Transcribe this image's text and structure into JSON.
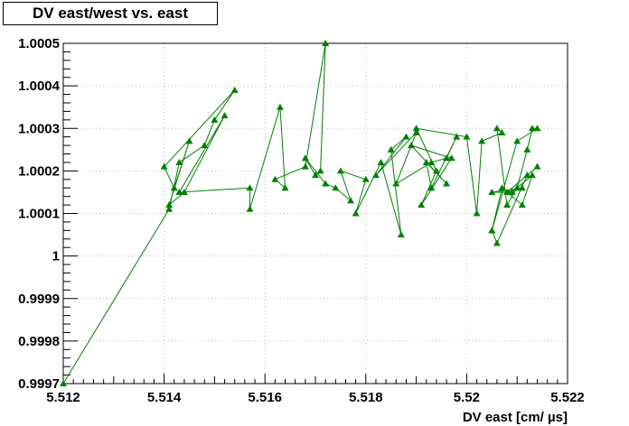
{
  "chart_data": {
    "type": "line",
    "title": "DV east/west vs. east",
    "xlabel": "DV east [cm/ µs]",
    "ylabel": "",
    "xlim": [
      5.512,
      5.522
    ],
    "ylim": [
      0.9997,
      1.0005
    ],
    "x_ticks": [
      "5.512",
      "5.514",
      "5.516",
      "5.518",
      "5.52",
      "5.522"
    ],
    "y_ticks": [
      "0.9997",
      "0.9998",
      "0.9999",
      "1",
      "1.0001",
      "1.0002",
      "1.0003",
      "1.0004",
      "1.0005"
    ],
    "grid": true,
    "marker": "triangle",
    "color": "#008000",
    "series": [
      {
        "x": [
          5.512,
          5.5141,
          5.5143,
          5.5148,
          5.515,
          5.5154,
          5.514,
          5.5142,
          5.5145,
          5.5141,
          5.5144,
          5.5152,
          5.5143,
          5.5157,
          5.5157,
          5.5163,
          5.5164,
          5.5162,
          5.5168,
          5.5172,
          5.5171,
          5.517,
          5.5168,
          5.5172,
          5.5174,
          5.5177,
          5.5175,
          5.518,
          5.5178,
          5.5183,
          5.5187,
          5.5185,
          5.5188,
          5.5182,
          5.519,
          5.5186,
          5.5193,
          5.5196,
          5.5198,
          5.5193,
          5.5192,
          5.5196,
          5.5189,
          5.5197,
          5.5191,
          5.5194,
          5.519,
          5.52,
          5.5202,
          5.5203,
          5.5207,
          5.5206,
          5.5208,
          5.521,
          5.5212,
          5.5213,
          5.5214,
          5.521,
          5.5205,
          5.5206,
          5.5212,
          5.5214,
          5.5208,
          5.5211,
          5.5205,
          5.5209,
          5.5213,
          5.5211,
          5.5207,
          5.5205
        ],
        "y": [
          0.9997,
          1.00011,
          1.00022,
          1.00026,
          1.00032,
          1.00039,
          1.00021,
          1.00016,
          1.00027,
          1.00012,
          1.00015,
          1.00033,
          1.00015,
          1.00016,
          1.00011,
          1.00035,
          1.00016,
          1.00018,
          1.00021,
          1.0005,
          1.0002,
          1.00019,
          1.00023,
          1.00017,
          1.00016,
          1.00013,
          1.0002,
          1.00018,
          1.0001,
          1.00022,
          1.00005,
          1.00025,
          1.00028,
          1.00019,
          1.00029,
          1.00017,
          1.00022,
          1.00023,
          1.00028,
          1.00016,
          1.00022,
          1.00017,
          1.00026,
          1.00023,
          1.00012,
          1.0002,
          1.0003,
          1.00028,
          1.0001,
          1.00027,
          1.00029,
          1.0003,
          1.00012,
          1.00016,
          1.00025,
          1.0003,
          1.0003,
          1.00027,
          1.00006,
          1.00003,
          1.00019,
          1.00021,
          1.00015,
          1.00016,
          1.00015,
          1.00015,
          1.00019,
          1.00012,
          1.00016,
          1.00006
        ]
      }
    ]
  }
}
